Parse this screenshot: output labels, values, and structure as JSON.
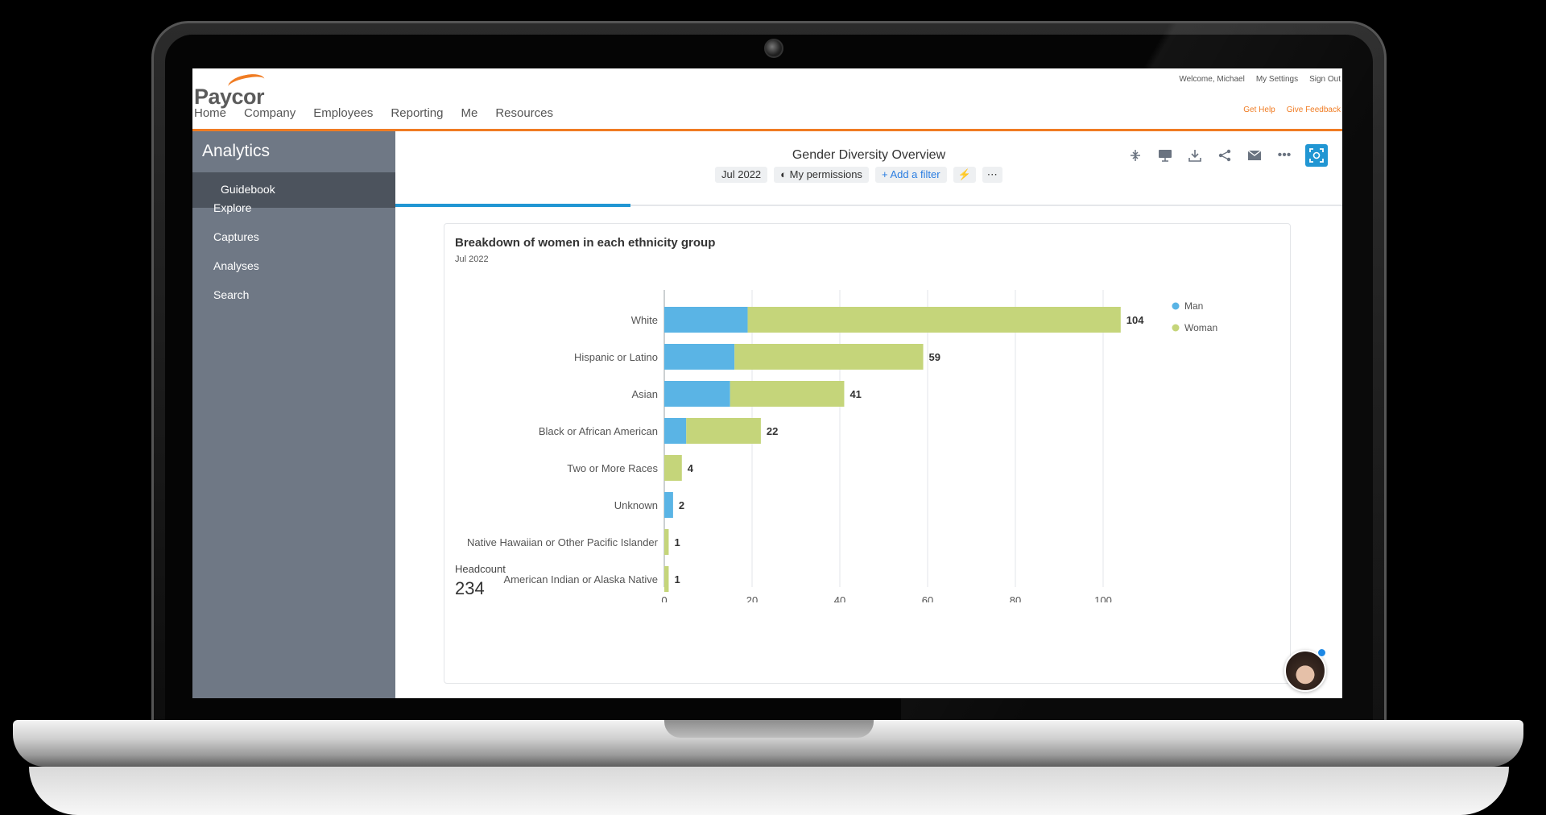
{
  "header": {
    "logo": "Paycor",
    "nav": [
      "Home",
      "Company",
      "Employees",
      "Reporting",
      "Me",
      "Resources"
    ],
    "welcome": "Welcome, Michael",
    "settings": "My Settings",
    "signout": "Sign Out",
    "help": "Get Help",
    "feedback": "Give Feedback"
  },
  "sidebar": {
    "title": "Analytics",
    "guidebook": "Guidebook",
    "items": [
      "Explore",
      "Captures",
      "Analyses",
      "Search"
    ]
  },
  "dashboard": {
    "title": "Gender Diversity Overview",
    "chips": {
      "date": "Jul 2022",
      "permissions": "My permissions",
      "filter": "Add a filter"
    }
  },
  "card": {
    "title": "Breakdown of women in each ethnicity group",
    "subtitle": "Jul 2022",
    "headcount_label": "Headcount",
    "headcount_value": "234"
  },
  "colors": {
    "man": "#5ab4e5",
    "woman": "#c5d57a",
    "accent": "#f07c23",
    "primary": "#2196d3"
  },
  "chart_data": {
    "type": "bar",
    "orientation": "horizontal",
    "stacked": true,
    "categories": [
      "White",
      "Hispanic or Latino",
      "Asian",
      "Black or African American",
      "Two or More Races",
      "Unknown",
      "Native Hawaiian or Other Pacific Islander",
      "American Indian or Alaska Native"
    ],
    "series": [
      {
        "name": "Man",
        "values": [
          19,
          16,
          15,
          5,
          0,
          2,
          0,
          0
        ]
      },
      {
        "name": "Woman",
        "values": [
          85,
          43,
          26,
          17,
          4,
          0,
          1,
          1
        ]
      }
    ],
    "totals": [
      104,
      59,
      41,
      22,
      4,
      2,
      1,
      1
    ],
    "xticks": [
      0,
      20,
      40,
      60,
      80,
      100
    ],
    "xlim": [
      0,
      112
    ],
    "legend": "top-right",
    "grid": true
  }
}
